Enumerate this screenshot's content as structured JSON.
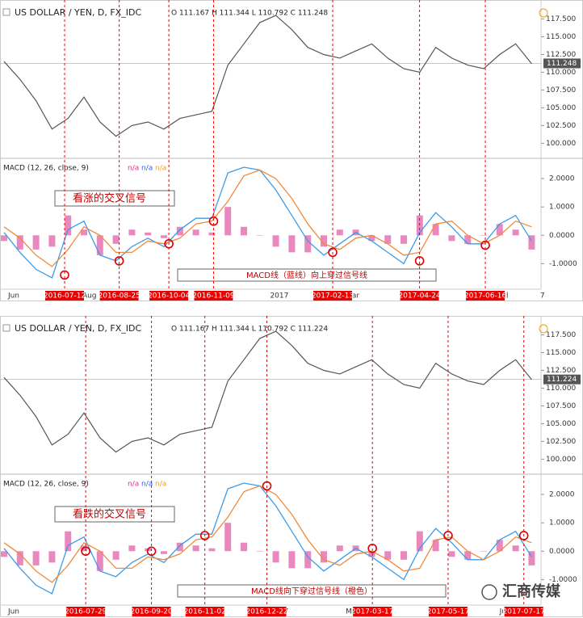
{
  "series": {
    "price": [
      111.5,
      109,
      106,
      102,
      103.5,
      106.5,
      103,
      101,
      102.5,
      103,
      102,
      103.5,
      104,
      104.5,
      111,
      114,
      117,
      118,
      116,
      113.5,
      112.5,
      112,
      113,
      114,
      112,
      110.5,
      110,
      113.5,
      112,
      111,
      110.5,
      112.5,
      114,
      111.2
    ],
    "macd": [
      0.1,
      -0.6,
      -1.2,
      -1.5,
      0.2,
      0.5,
      -0.7,
      -0.9,
      -0.4,
      -0.1,
      -0.4,
      0.2,
      0.6,
      0.6,
      2.2,
      2.4,
      2.3,
      1.6,
      0.7,
      -0.2,
      -0.7,
      -0.3,
      0.1,
      -0.2,
      -0.6,
      -1.0,
      0.1,
      0.8,
      0.3,
      -0.3,
      -0.3,
      0.4,
      0.7,
      -0.2
    ],
    "signal": [
      0.3,
      -0.1,
      -0.7,
      -1.1,
      -0.5,
      0.3,
      0.0,
      -0.6,
      -0.6,
      -0.2,
      -0.3,
      -0.1,
      0.4,
      0.5,
      1.2,
      2.1,
      2.3,
      2.0,
      1.3,
      0.4,
      -0.3,
      -0.5,
      -0.1,
      0.0,
      -0.3,
      -0.7,
      -0.6,
      0.4,
      0.5,
      0.0,
      -0.3,
      0.0,
      0.5,
      0.3
    ],
    "histogram": [
      -0.2,
      -0.5,
      -0.5,
      -0.4,
      0.7,
      0.2,
      -0.7,
      -0.3,
      0.2,
      0.1,
      -0.1,
      0.3,
      0.2,
      0.1,
      1.0,
      0.3,
      0.0,
      -0.4,
      -0.6,
      -0.6,
      -0.4,
      0.2,
      0.2,
      -0.2,
      -0.3,
      -0.3,
      0.7,
      0.4,
      -0.2,
      -0.3,
      0.0,
      0.4,
      0.2,
      -0.5
    ]
  },
  "price_axis": {
    "ylim": [
      98,
      119.6
    ],
    "ticks": [
      {
        "value": 117.5,
        "label": "117.500"
      },
      {
        "value": 115,
        "label": "115.000"
      },
      {
        "value": 112.5,
        "label": "112.500"
      },
      {
        "value": 110,
        "label": "110.000"
      },
      {
        "value": 107.5,
        "label": "107.500"
      },
      {
        "value": 105,
        "label": "105.000"
      },
      {
        "value": 102.5,
        "label": "102.500"
      },
      {
        "value": 100,
        "label": "100.000"
      }
    ]
  },
  "macd_axis": {
    "ylim": [
      -1.9,
      2.6
    ],
    "ticks": [
      {
        "value": 2,
        "label": "2.0000"
      },
      {
        "value": 1,
        "label": "1.0000"
      },
      {
        "value": 0,
        "label": "0.0000"
      },
      {
        "value": -1,
        "label": "-1.0000"
      }
    ]
  },
  "time_axis": [
    {
      "value": "2016-06-01",
      "label": "Jun"
    },
    {
      "value": "2016-08-01",
      "label": "Aug"
    },
    {
      "value": "2017-01-01",
      "label": "2017"
    },
    {
      "value": "2017-03-01",
      "label": "Mar"
    },
    {
      "value": "2017-07-01",
      "label": "Jul"
    },
    {
      "value": "2017-08-01",
      "label": "7"
    }
  ],
  "panels": [
    {
      "symbol": "US DOLLAR / YEN, D, FX_IDC",
      "ohlc": "O 111.167 H 111.344 L 110.792 C 111.248",
      "last_price": 111.248,
      "indicator": "MACD (12, 26, close, 9)",
      "indicator_values": [
        "n/a",
        "n/a",
        "n/a"
      ],
      "signal_title": "看涨的交叉信号",
      "signal_note": "MACD线（蓝线）向上穿过信号线",
      "crossings": [
        {
          "date": "2016-07-12",
          "value": -1.4
        },
        {
          "date": "2016-08-25",
          "value": -0.9
        },
        {
          "date": "2016-10-04",
          "value": -0.3
        },
        {
          "date": "2016-11-09",
          "value": 0.5
        },
        {
          "date": "2017-02-13",
          "value": -0.6
        },
        {
          "date": "2017-04-24",
          "value": -0.9
        },
        {
          "date": "2017-06-16",
          "value": -0.35
        }
      ]
    },
    {
      "symbol": "US DOLLAR / YEN, D, FX_IDC",
      "ohlc": "O 111.167 H 111.344 L 110.792 C 111.224",
      "last_price": 111.224,
      "indicator": "MACD (12, 26, close, 9)",
      "indicator_values": [
        "n/a",
        "n/a",
        "n/a"
      ],
      "signal_title": "看跌的交叉信号",
      "signal_note": "MACD线向下穿过信号线（橙色）",
      "crossings": [
        {
          "date": "2016-07-29",
          "value": 0.0
        },
        {
          "date": "2016-09-20",
          "value": 0.0
        },
        {
          "date": "2016-11-02",
          "value": 0.55
        },
        {
          "date": "2016-12-22",
          "value": 2.3
        },
        {
          "date": "2017-03-17",
          "value": 0.1
        },
        {
          "date": "2017-05-17",
          "value": 0.55
        },
        {
          "date": "2017-07-17",
          "value": 0.55
        }
      ]
    }
  ],
  "watermark": "汇商传媒"
}
